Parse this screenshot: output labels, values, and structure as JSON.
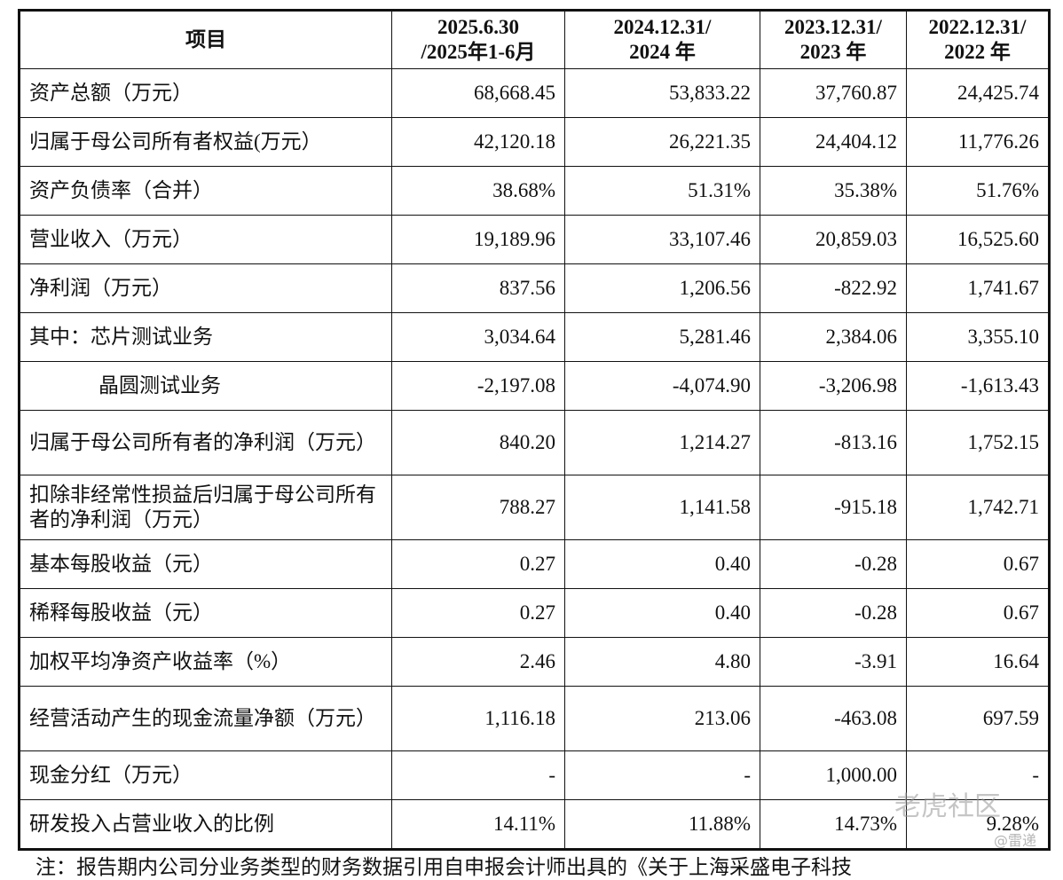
{
  "header": [
    "项目",
    "2025.6.30\n/2025年1-6月",
    "2024.12.31/\n2024 年",
    "2023.12.31/\n2023 年",
    "2022.12.31/\n2022 年"
  ],
  "header_lines": [
    [
      "项目"
    ],
    [
      "2025.6.30",
      "/2025年1-6月"
    ],
    [
      "2024.12.31/",
      "2024 年"
    ],
    [
      "2023.12.31/",
      "2023 年"
    ],
    [
      "2022.12.31/",
      "2022 年"
    ]
  ],
  "rows": [
    {
      "label": "资产总额（万元）",
      "values": [
        "68,668.45",
        "53,833.22",
        "37,760.87",
        "24,425.74"
      ]
    },
    {
      "label": "归属于母公司所有者权益(万元）",
      "values": [
        "42,120.18",
        "26,221.35",
        "24,404.12",
        "11,776.26"
      ]
    },
    {
      "label": "资产负债率（合并）",
      "values": [
        "38.68%",
        "51.31%",
        "35.38%",
        "51.76%"
      ]
    },
    {
      "label": "营业收入（万元）",
      "values": [
        "19,189.96",
        "33,107.46",
        "20,859.03",
        "16,525.60"
      ]
    },
    {
      "label": "净利润（万元）",
      "values": [
        "837.56",
        "1,206.56",
        "-822.92",
        "1,741.67"
      ]
    },
    {
      "label": "其中：芯片测试业务",
      "values": [
        "3,034.64",
        "5,281.46",
        "2,384.06",
        "3,355.10"
      ]
    },
    {
      "label": "晶圆测试业务",
      "values": [
        "-2,197.08",
        "-4,074.90",
        "-3,206.98",
        "-1,613.43"
      ]
    },
    {
      "label": "归属于母公司所有者的净利润（万元）",
      "values": [
        "840.20",
        "1,214.27",
        "-813.16",
        "1,752.15"
      ]
    },
    {
      "label": "扣除非经常性损益后归属于母公司所有者的净利润（万元）",
      "values": [
        "788.27",
        "1,141.58",
        "-915.18",
        "1,742.71"
      ]
    },
    {
      "label": "基本每股收益（元）",
      "values": [
        "0.27",
        "0.40",
        "-0.28",
        "0.67"
      ]
    },
    {
      "label": "稀释每股收益（元）",
      "values": [
        "0.27",
        "0.40",
        "-0.28",
        "0.67"
      ]
    },
    {
      "label": "加权平均净资产收益率（%）",
      "values": [
        "2.46",
        "4.80",
        "-3.91",
        "16.64"
      ]
    },
    {
      "label": "经营活动产生的现金流量净额（万元）",
      "values": [
        "1,116.18",
        "213.06",
        "-463.08",
        "697.59"
      ]
    },
    {
      "label": "现金分红（万元）",
      "values": [
        "-",
        "-",
        "1,000.00",
        "-"
      ]
    },
    {
      "label": "研发投入占营业收入的比例",
      "values": [
        "14.11%",
        "11.88%",
        "14.73%",
        "9.28%"
      ]
    }
  ],
  "note": "注：报告期内公司分业务类型的财务数据引用自申报会计师出具的《关于上海采盛电子科技",
  "watermark": "老虎社区",
  "watermark_sub": "@雷递"
}
